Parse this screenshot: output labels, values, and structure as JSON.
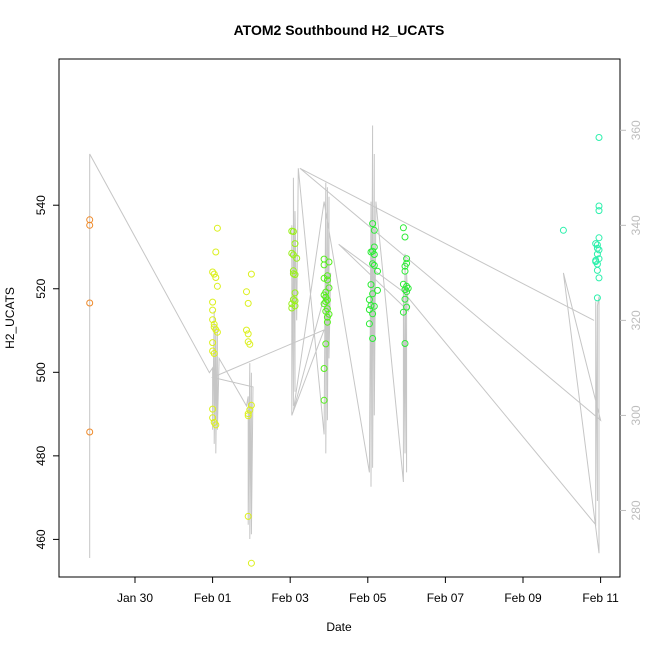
{
  "chart_data": {
    "type": "scatter",
    "title": "ATOM2 Southbound H2_UCATS",
    "xlabel": "Date",
    "ylabel": "H2_UCATS",
    "x_unit": "date",
    "xlim": [
      "2016-01-28T01:00",
      "2016-02-11T12:00"
    ],
    "ylim": [
      451,
      575
    ],
    "x_ticks": [
      {
        "label": "Jan 30",
        "date": "2016-01-30"
      },
      {
        "label": "Feb 01",
        "date": "2016-02-01"
      },
      {
        "label": "Feb 03",
        "date": "2016-02-03"
      },
      {
        "label": "Feb 05",
        "date": "2016-02-05"
      },
      {
        "label": "Feb 07",
        "date": "2016-02-07"
      },
      {
        "label": "Feb 09",
        "date": "2016-02-09"
      },
      {
        "label": "Feb 11",
        "date": "2016-02-11"
      }
    ],
    "y_ticks": [
      460,
      480,
      500,
      520,
      540
    ],
    "secondary_axis": {
      "ticks": [
        280,
        300,
        320,
        340,
        360
      ],
      "ylim": [
        266,
        375
      ],
      "color": "#bdbdbd"
    },
    "grid": false,
    "legend": "none",
    "series": [
      {
        "color": "#ef8a2a",
        "points": [
          [
            "2016-01-28T20:00",
            536.5
          ],
          [
            "2016-01-28T20:00",
            535.2
          ],
          [
            "2016-01-28T20:00",
            516.6
          ],
          [
            "2016-01-28T20:00",
            485.7
          ]
        ]
      },
      {
        "color": "#dcf01f",
        "points": [
          [
            "2016-02-01T00:00",
            524.0
          ],
          [
            "2016-02-01T01:00",
            523.5
          ],
          [
            "2016-02-01T03:00",
            534.5
          ],
          [
            "2016-02-01T02:00",
            528.8
          ],
          [
            "2016-02-01T02:00",
            522.7
          ],
          [
            "2016-02-01T03:00",
            520.6
          ],
          [
            "2016-02-01T00:00",
            516.8
          ],
          [
            "2016-02-01T00:00",
            514.9
          ],
          [
            "2016-02-01T00:00",
            512.6
          ],
          [
            "2016-02-01T01:00",
            511.5
          ],
          [
            "2016-02-01T01:00",
            510.8
          ],
          [
            "2016-02-01T02:00",
            510.2
          ],
          [
            "2016-02-01T03:00",
            509.6
          ],
          [
            "2016-02-01T00:00",
            507.1
          ],
          [
            "2016-02-01T00:00",
            505.1
          ],
          [
            "2016-02-01T01:00",
            504.5
          ],
          [
            "2016-02-01T00:00",
            491.2
          ],
          [
            "2016-02-01T00:00",
            489.1
          ],
          [
            "2016-02-01T01:00",
            488.0
          ],
          [
            "2016-02-01T02:00",
            487.4
          ],
          [
            "2016-02-01T21:00",
            519.3
          ],
          [
            "2016-02-02T00:00",
            523.5
          ],
          [
            "2016-02-01T22:00",
            516.5
          ],
          [
            "2016-02-01T21:00",
            510.1
          ],
          [
            "2016-02-01T22:00",
            509.2
          ],
          [
            "2016-02-01T22:00",
            507.3
          ],
          [
            "2016-02-01T23:00",
            506.7
          ],
          [
            "2016-02-02T00:00",
            492.1
          ],
          [
            "2016-02-01T23:00",
            491.0
          ],
          [
            "2016-02-01T22:00",
            490.1
          ],
          [
            "2016-02-01T22:00",
            489.6
          ],
          [
            "2016-02-01T22:00",
            465.5
          ],
          [
            "2016-02-02T00:00",
            454.3
          ]
        ]
      },
      {
        "color": "#9af01b",
        "points": [
          [
            "2016-02-03T01:00",
            533.8
          ],
          [
            "2016-02-03T02:00",
            533.7
          ],
          [
            "2016-02-03T03:00",
            530.8
          ],
          [
            "2016-02-03T01:00",
            528.5
          ],
          [
            "2016-02-03T02:00",
            528.1
          ],
          [
            "2016-02-03T04:00",
            527.3
          ],
          [
            "2016-02-03T02:00",
            524.3
          ],
          [
            "2016-02-03T02:00",
            523.6
          ],
          [
            "2016-02-03T03:00",
            523.4
          ],
          [
            "2016-02-03T03:00",
            519.0
          ],
          [
            "2016-02-03T02:00",
            517.4
          ],
          [
            "2016-02-03T03:00",
            517.1
          ],
          [
            "2016-02-03T01:00",
            516.4
          ],
          [
            "2016-02-03T03:00",
            515.9
          ],
          [
            "2016-02-03T01:00",
            515.4
          ]
        ]
      },
      {
        "color": "#55ee1c",
        "points": [
          [
            "2016-02-03T21:00",
            527.1
          ],
          [
            "2016-02-03T21:00",
            525.7
          ],
          [
            "2016-02-04T00:00",
            526.4
          ],
          [
            "2016-02-03T23:00",
            523.1
          ],
          [
            "2016-02-03T21:00",
            522.5
          ],
          [
            "2016-02-03T23:00",
            522.1
          ],
          [
            "2016-02-04T00:00",
            520.2
          ],
          [
            "2016-02-03T22:00",
            519.2
          ],
          [
            "2016-02-03T21:00",
            518.5
          ],
          [
            "2016-02-03T22:00",
            518.0
          ],
          [
            "2016-02-03T23:00",
            517.3
          ],
          [
            "2016-02-03T22:00",
            516.9
          ],
          [
            "2016-02-03T21:00",
            516.4
          ],
          [
            "2016-02-03T23:00",
            515.2
          ],
          [
            "2016-02-03T22:00",
            514.6
          ],
          [
            "2016-02-04T00:00",
            513.9
          ],
          [
            "2016-02-03T23:00",
            513.2
          ],
          [
            "2016-02-03T23:00",
            512.0
          ],
          [
            "2016-02-03T22:00",
            506.8
          ],
          [
            "2016-02-03T21:00",
            500.9
          ],
          [
            "2016-02-03T21:00",
            493.3
          ]
        ]
      },
      {
        "color": "#2cec36",
        "points": [
          [
            "2016-02-05T03:00",
            535.6
          ],
          [
            "2016-02-05T04:00",
            534.0
          ],
          [
            "2016-02-05T04:00",
            530.0
          ],
          [
            "2016-02-05T03:00",
            529.0
          ],
          [
            "2016-02-05T02:00",
            528.8
          ],
          [
            "2016-02-05T04:00",
            528.2
          ],
          [
            "2016-02-05T03:00",
            526.0
          ],
          [
            "2016-02-05T04:00",
            525.6
          ],
          [
            "2016-02-05T06:00",
            524.2
          ],
          [
            "2016-02-05T02:00",
            521.0
          ],
          [
            "2016-02-05T06:00",
            519.6
          ],
          [
            "2016-02-05T03:00",
            518.8
          ],
          [
            "2016-02-05T01:00",
            517.4
          ],
          [
            "2016-02-05T02:00",
            516.0
          ],
          [
            "2016-02-05T04:00",
            515.8
          ],
          [
            "2016-02-05T01:00",
            515.0
          ],
          [
            "2016-02-05T03:00",
            514.0
          ],
          [
            "2016-02-05T01:00",
            511.6
          ],
          [
            "2016-02-05T03:00",
            508.1
          ],
          [
            "2016-02-05T22:00",
            534.6
          ],
          [
            "2016-02-05T23:00",
            532.4
          ],
          [
            "2016-02-06T00:00",
            527.2
          ],
          [
            "2016-02-06T00:00",
            526.1
          ],
          [
            "2016-02-05T23:00",
            525.4
          ],
          [
            "2016-02-05T23:00",
            524.2
          ],
          [
            "2016-02-05T22:00",
            521.1
          ],
          [
            "2016-02-06T00:00",
            520.6
          ],
          [
            "2016-02-06T01:00",
            520.1
          ],
          [
            "2016-02-05T23:00",
            519.8
          ],
          [
            "2016-02-06T00:00",
            519.3
          ],
          [
            "2016-02-05T23:00",
            517.5
          ],
          [
            "2016-02-06T00:00",
            515.6
          ],
          [
            "2016-02-05T22:00",
            514.4
          ],
          [
            "2016-02-05T23:00",
            506.9
          ]
        ]
      },
      {
        "color": "#2cf0ac",
        "points": [
          [
            "2016-02-10T01:00",
            534.0
          ],
          [
            "2016-02-10T23:00",
            556.2
          ],
          [
            "2016-02-10T23:00",
            539.8
          ],
          [
            "2016-02-10T23:00",
            538.7
          ],
          [
            "2016-02-10T21:00",
            530.8
          ],
          [
            "2016-02-10T22:00",
            530.5
          ],
          [
            "2016-02-10T22:00",
            529.7
          ],
          [
            "2016-02-10T23:00",
            529.3
          ],
          [
            "2016-02-10T22:00",
            528.3
          ],
          [
            "2016-02-10T23:00",
            527.2
          ],
          [
            "2016-02-10T21:00",
            526.5
          ],
          [
            "2016-02-10T22:00",
            525.9
          ],
          [
            "2016-02-10T22:00",
            524.4
          ],
          [
            "2016-02-10T23:00",
            522.6
          ],
          [
            "2016-02-10T22:00",
            517.8
          ],
          [
            "2016-02-10T21:00",
            526.8
          ],
          [
            "2016-02-10T23:00",
            532.2
          ]
        ]
      }
    ],
    "secondary_line": {
      "color": "#c6c6c6",
      "points": [
        [
          "2016-01-28T20:00",
          270
        ],
        [
          "2016-01-28T20:00",
          355
        ],
        [
          "2016-01-31T22:00",
          309
        ],
        [
          "2016-02-01T00:00",
          310
        ],
        [
          "2016-02-01T00:00",
          297
        ],
        [
          "2016-02-01T01:00",
          322
        ],
        [
          "2016-02-01T01:00",
          294
        ],
        [
          "2016-02-01T02:00",
          319
        ],
        [
          "2016-02-01T02:00",
          292
        ],
        [
          "2016-02-01T03:00",
          318
        ],
        [
          "2016-02-01T03:00",
          297
        ],
        [
          "2016-02-01T04:00",
          312
        ],
        [
          "2016-02-01T21:00",
          302
        ],
        [
          "2016-02-01T22:00",
          304
        ],
        [
          "2016-02-01T22:00",
          277
        ],
        [
          "2016-02-01T23:00",
          311
        ],
        [
          "2016-02-01T23:00",
          274
        ],
        [
          "2016-02-02T00:00",
          309
        ],
        [
          "2016-02-02T00:00",
          275
        ],
        [
          "2016-02-02T01:00",
          306
        ],
        [
          "2016-02-01T00:00",
          308
        ],
        [
          "2016-02-03T21:00",
          318
        ],
        [
          "2016-02-03T01:00",
          300
        ],
        [
          "2016-02-03T01:00",
          340
        ],
        [
          "2016-02-03T02:00",
          302
        ],
        [
          "2016-02-03T02:00",
          350
        ],
        [
          "2016-02-03T03:00",
          305
        ],
        [
          "2016-02-03T03:00",
          343
        ],
        [
          "2016-02-03T04:00",
          320
        ],
        [
          "2016-02-03T05:00",
          352
        ],
        [
          "2016-02-03T21:00",
          296
        ],
        [
          "2016-02-03T22:00",
          349
        ],
        [
          "2016-02-03T22:00",
          292
        ],
        [
          "2016-02-03T23:00",
          348
        ],
        [
          "2016-02-03T23:00",
          299
        ],
        [
          "2016-02-04T00:00",
          346
        ],
        [
          "2016-02-04T00:00",
          312
        ],
        [
          "2016-02-04T01:00",
          330
        ],
        [
          "2016-02-03T02:00",
          301
        ],
        [
          "2016-02-03T21:00",
          345
        ],
        [
          "2016-02-05T01:00",
          288
        ],
        [
          "2016-02-05T02:00",
          345
        ],
        [
          "2016-02-05T02:00",
          285
        ],
        [
          "2016-02-05T03:00",
          361
        ],
        [
          "2016-02-05T03:00",
          289
        ],
        [
          "2016-02-05T04:00",
          355
        ],
        [
          "2016-02-05T04:00",
          300
        ],
        [
          "2016-02-05T05:00",
          345
        ],
        [
          "2016-02-05T22:00",
          286
        ],
        [
          "2016-02-05T22:00",
          327
        ],
        [
          "2016-02-05T23:00",
          292
        ],
        [
          "2016-02-05T23:00",
          334
        ],
        [
          "2016-02-06T00:00",
          288
        ],
        [
          "2016-02-06T00:00",
          330
        ],
        [
          "2016-02-06T01:00",
          322
        ],
        [
          "2016-02-04T06:00",
          336
        ],
        [
          "2016-02-05T22:00",
          326
        ],
        [
          "2016-02-10T21:00",
          277
        ],
        [
          "2016-02-10T21:00",
          324
        ],
        [
          "2016-02-10T22:00",
          282
        ],
        [
          "2016-02-10T22:00",
          323
        ],
        [
          "2016-02-10T23:00",
          325
        ],
        [
          "2016-02-10T23:00",
          271
        ],
        [
          "2016-02-10T01:00",
          330
        ],
        [
          "2016-02-11T00:00",
          299
        ],
        [
          "2016-02-03T06:00",
          352
        ],
        [
          "2016-02-10T20:00",
          320
        ]
      ]
    }
  }
}
